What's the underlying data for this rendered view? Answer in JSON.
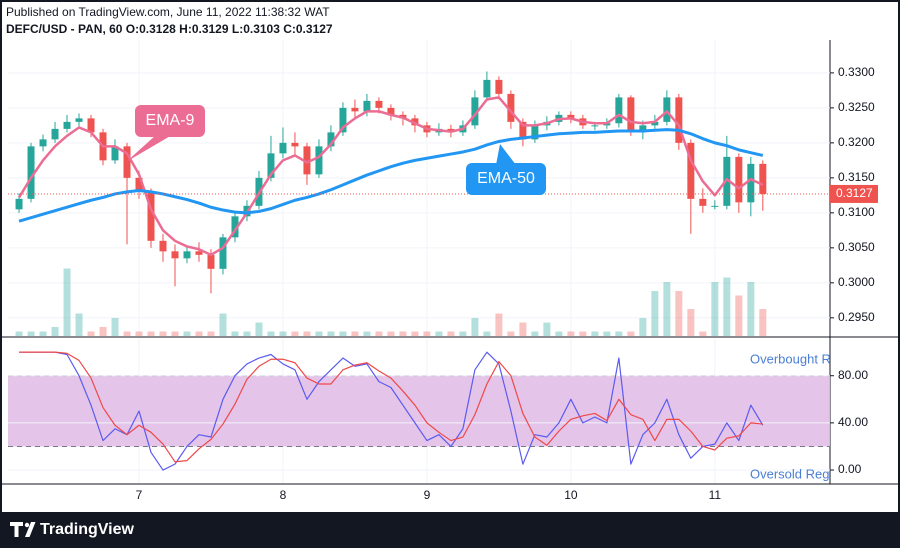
{
  "header": {
    "published": "Published on TradingView.com, June 11, 2022 11:38:32 WAT",
    "symbol_line": "DEFC/USD - PAN, 60 O:0.3128 H:0.3129 L:0.3103 C:0.3127"
  },
  "footer": {
    "brand": "TradingView"
  },
  "chart_data": [
    {
      "type": "candlestick",
      "x": [
        6.1667,
        6.25,
        6.3333,
        6.4167,
        6.5,
        6.5833,
        6.6667,
        6.75,
        6.8333,
        6.9167,
        7,
        7.0833,
        7.1667,
        7.25,
        7.3333,
        7.4167,
        7.5,
        7.5833,
        7.6667,
        7.75,
        7.8333,
        7.9167,
        8,
        8.0833,
        8.1667,
        8.25,
        8.3333,
        8.4167,
        8.5,
        8.5833,
        8.6667,
        8.75,
        8.8333,
        8.9167,
        9,
        9.0833,
        9.1667,
        9.25,
        9.3333,
        9.4167,
        9.5,
        9.5833,
        9.6667,
        9.75,
        9.8333,
        9.9167,
        10,
        10.0833,
        10.1667,
        10.25,
        10.3333,
        10.4167,
        10.5,
        10.5833,
        10.6667,
        10.75,
        10.8333,
        10.9167,
        11,
        11.0833,
        11.1667,
        11.25,
        11.3333
      ],
      "open": [
        0.3105,
        0.312,
        0.3195,
        0.3205,
        0.322,
        0.323,
        0.3235,
        0.3215,
        0.3175,
        0.3195,
        0.315,
        0.313,
        0.306,
        0.3045,
        0.3035,
        0.3045,
        0.304,
        0.302,
        0.3065,
        0.3095,
        0.311,
        0.315,
        0.3185,
        0.32,
        0.3195,
        0.3155,
        0.3195,
        0.3215,
        0.325,
        0.3245,
        0.326,
        0.325,
        0.324,
        0.3235,
        0.3225,
        0.3215,
        0.322,
        0.3215,
        0.3225,
        0.3265,
        0.329,
        0.327,
        0.323,
        0.3205,
        0.3225,
        0.323,
        0.324,
        0.3235,
        0.3225,
        0.3225,
        0.3228,
        0.3265,
        0.3215,
        0.3225,
        0.323,
        0.3265,
        0.32,
        0.312,
        0.311,
        0.311,
        0.318,
        0.3115,
        0.317
      ],
      "high": [
        0.3128,
        0.32,
        0.3212,
        0.323,
        0.324,
        0.3242,
        0.324,
        0.322,
        0.3205,
        0.32,
        0.316,
        0.3135,
        0.307,
        0.3055,
        0.3052,
        0.3058,
        0.3048,
        0.307,
        0.3102,
        0.3118,
        0.316,
        0.321,
        0.3222,
        0.3215,
        0.32,
        0.3205,
        0.3225,
        0.3258,
        0.3262,
        0.327,
        0.3265,
        0.3255,
        0.3245,
        0.324,
        0.323,
        0.3228,
        0.3226,
        0.3232,
        0.3275,
        0.3302,
        0.3295,
        0.3275,
        0.3235,
        0.3232,
        0.3238,
        0.3245,
        0.3245,
        0.324,
        0.323,
        0.3235,
        0.327,
        0.3268,
        0.3232,
        0.324,
        0.3275,
        0.327,
        0.3205,
        0.3135,
        0.3118,
        0.321,
        0.3185,
        0.318,
        0.3175
      ],
      "low": [
        0.31,
        0.3115,
        0.3188,
        0.32,
        0.3215,
        0.3222,
        0.3208,
        0.3168,
        0.317,
        0.3055,
        0.312,
        0.305,
        0.303,
        0.2995,
        0.3028,
        0.303,
        0.2985,
        0.3012,
        0.3058,
        0.3088,
        0.3105,
        0.3145,
        0.3178,
        0.318,
        0.314,
        0.315,
        0.3188,
        0.321,
        0.3235,
        0.3238,
        0.3242,
        0.3232,
        0.3225,
        0.3215,
        0.3208,
        0.321,
        0.3208,
        0.321,
        0.322,
        0.326,
        0.3262,
        0.322,
        0.3195,
        0.32,
        0.3218,
        0.3225,
        0.3228,
        0.322,
        0.3218,
        0.322,
        0.3222,
        0.321,
        0.3205,
        0.322,
        0.3225,
        0.319,
        0.307,
        0.31,
        0.3105,
        0.3105,
        0.31,
        0.3095,
        0.3103
      ],
      "close": [
        0.312,
        0.3195,
        0.3205,
        0.322,
        0.323,
        0.3235,
        0.3215,
        0.3175,
        0.3195,
        0.315,
        0.313,
        0.306,
        0.3045,
        0.3035,
        0.3045,
        0.304,
        0.302,
        0.3065,
        0.3095,
        0.311,
        0.315,
        0.3185,
        0.32,
        0.3195,
        0.3155,
        0.3195,
        0.3215,
        0.325,
        0.3245,
        0.326,
        0.325,
        0.324,
        0.3235,
        0.3225,
        0.3215,
        0.322,
        0.3215,
        0.3225,
        0.3265,
        0.329,
        0.327,
        0.323,
        0.3205,
        0.3225,
        0.323,
        0.324,
        0.3235,
        0.3225,
        0.3225,
        0.3228,
        0.3265,
        0.3215,
        0.3225,
        0.323,
        0.3265,
        0.32,
        0.312,
        0.311,
        0.311,
        0.318,
        0.3115,
        0.317,
        0.3127
      ],
      "volume": [
        1,
        1,
        1,
        2,
        15,
        5,
        1,
        2,
        4,
        1,
        1,
        1,
        1,
        1,
        1,
        1,
        1,
        5,
        1,
        1,
        3,
        1,
        1,
        1,
        1,
        1,
        1,
        1,
        1,
        1,
        1,
        1,
        1,
        1,
        1,
        1,
        1,
        1,
        4,
        1,
        5,
        1,
        3,
        1,
        3,
        1,
        1,
        1,
        1,
        1,
        1,
        1,
        4,
        10,
        12,
        10,
        6,
        1,
        12,
        13,
        9,
        12,
        6
      ],
      "volume_lim": [
        0,
        20
      ],
      "up_color": "#26a69a",
      "down_color": "#ef5350",
      "series": [
        {
          "name": "EMA-9",
          "color": "#ec6d94",
          "values": [
            0.3122,
            0.315,
            0.3175,
            0.3195,
            0.321,
            0.3222,
            0.3215,
            0.3195,
            0.3195,
            0.3185,
            0.3155,
            0.3105,
            0.3075,
            0.306,
            0.3052,
            0.3048,
            0.304,
            0.305,
            0.3075,
            0.31,
            0.3128,
            0.3155,
            0.3175,
            0.3182,
            0.3172,
            0.318,
            0.3198,
            0.3222,
            0.3235,
            0.3245,
            0.3245,
            0.324,
            0.3236,
            0.3228,
            0.322,
            0.3218,
            0.3216,
            0.322,
            0.324,
            0.3262,
            0.3265,
            0.3245,
            0.3225,
            0.3225,
            0.3228,
            0.3234,
            0.3235,
            0.323,
            0.3228,
            0.3228,
            0.324,
            0.323,
            0.3228,
            0.323,
            0.3245,
            0.3225,
            0.3175,
            0.3145,
            0.3125,
            0.3148,
            0.3135,
            0.3148,
            0.314
          ]
        },
        {
          "name": "EMA-50",
          "color": "#2196f3",
          "values": [
            0.3088,
            0.3093,
            0.3098,
            0.3103,
            0.3108,
            0.3113,
            0.3118,
            0.3122,
            0.3127,
            0.313,
            0.3132,
            0.313,
            0.3127,
            0.3123,
            0.3119,
            0.3114,
            0.3108,
            0.3104,
            0.3101,
            0.31,
            0.3102,
            0.3106,
            0.3112,
            0.3118,
            0.3122,
            0.3127,
            0.3133,
            0.314,
            0.3147,
            0.3154,
            0.316,
            0.3166,
            0.3171,
            0.3175,
            0.3178,
            0.3181,
            0.3184,
            0.3187,
            0.3191,
            0.3197,
            0.3202,
            0.3205,
            0.3207,
            0.3209,
            0.3211,
            0.3213,
            0.3214,
            0.3215,
            0.3215,
            0.3216,
            0.3217,
            0.3217,
            0.3217,
            0.3218,
            0.3219,
            0.3218,
            0.3213,
            0.3206,
            0.32,
            0.3196,
            0.319,
            0.3186,
            0.3182
          ]
        }
      ],
      "xlim": [
        6.09,
        11.8
      ],
      "xticks": [
        7,
        8,
        9,
        10,
        11
      ],
      "ylim": [
        0.2924,
        0.3347
      ],
      "yticks": [
        {
          "value": 0.33,
          "label": "0.3300"
        },
        {
          "value": 0.325,
          "label": "0.3250"
        },
        {
          "value": 0.32,
          "label": "0.3200"
        },
        {
          "value": 0.315,
          "label": "0.3150"
        },
        {
          "value": 0.31,
          "label": "0.3100"
        },
        {
          "value": 0.305,
          "label": "0.3050"
        },
        {
          "value": 0.3,
          "label": "0.3000"
        },
        {
          "value": 0.295,
          "label": "0.2950"
        }
      ],
      "grid": true,
      "last_price": 0.3127,
      "last_price_color": "#ef5350"
    },
    {
      "type": "line",
      "series": [
        {
          "color": "#5b5bf0",
          "values": [
            100,
            100,
            100,
            100,
            98,
            80,
            55,
            25,
            35,
            30,
            50,
            15,
            0,
            5,
            20,
            30,
            28,
            60,
            80,
            90,
            95,
            98,
            90,
            85,
            60,
            75,
            85,
            95,
            88,
            90,
            75,
            70,
            55,
            40,
            25,
            30,
            20,
            35,
            85,
            100,
            90,
            50,
            5,
            30,
            28,
            40,
            60,
            40,
            45,
            40,
            95,
            5,
            30,
            40,
            60,
            30,
            10,
            20,
            22,
            40,
            25,
            55,
            38
          ]
        },
        {
          "color": "#f04848",
          "values": [
            100,
            100,
            100,
            100,
            99,
            93,
            78,
            53,
            38,
            30,
            38,
            32,
            22,
            7,
            8,
            18,
            26,
            39,
            56,
            77,
            88,
            94,
            94,
            91,
            78,
            73,
            73,
            85,
            89,
            91,
            84,
            78,
            67,
            55,
            40,
            32,
            25,
            28,
            47,
            73,
            92,
            80,
            48,
            28,
            21,
            33,
            43,
            46,
            48,
            42,
            60,
            47,
            43,
            25,
            43,
            43,
            33,
            20,
            17,
            27,
            29,
            40,
            39
          ]
        }
      ],
      "ylim": [
        -11,
        112
      ],
      "yticks": [
        {
          "value": 80,
          "label": "80.00"
        },
        {
          "value": 40,
          "label": "40.00"
        },
        {
          "value": 0,
          "label": "0.00"
        }
      ],
      "band": [
        20,
        80
      ],
      "band_color": "#e1bee7",
      "upper_label": "Overbought R",
      "lower_label": "Oversold Reg",
      "grid": true
    }
  ]
}
